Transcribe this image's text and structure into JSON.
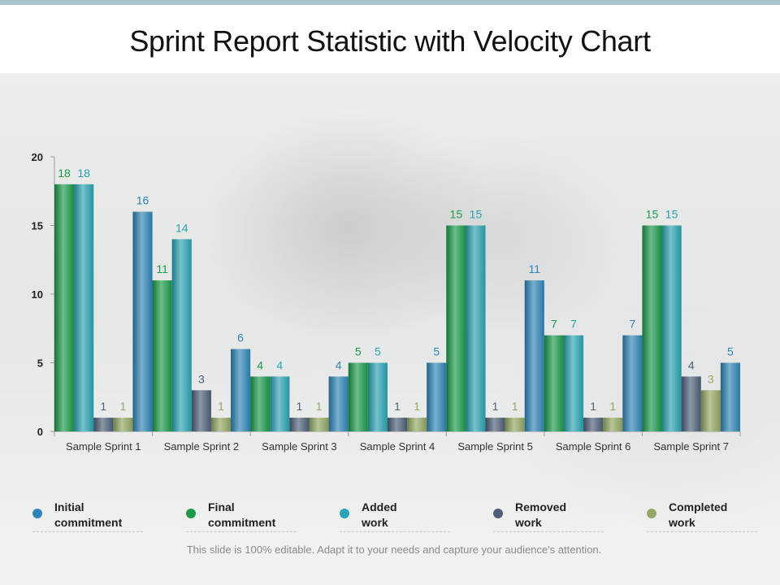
{
  "title": "Sprint Report Statistic with Velocity Chart",
  "footer": "This slide is 100% editable. Adapt it to your needs and capture your audience's attention.",
  "colors": {
    "initial": "#2f84b7",
    "final": "#1a9a4a",
    "added": "#2aa3b3",
    "removed": "#4d5f78",
    "completed": "#93a862"
  },
  "legend": [
    {
      "key": "initial",
      "label": "Initial\ncommitment"
    },
    {
      "key": "final",
      "label": "Final\ncommitment"
    },
    {
      "key": "added",
      "label": "Added\nwork"
    },
    {
      "key": "removed",
      "label": "Removed\nwork"
    },
    {
      "key": "completed",
      "label": "Completed\nwork"
    }
  ],
  "chart_data": {
    "type": "bar",
    "title": "Sprint Report Statistic with Velocity Chart",
    "xlabel": "",
    "ylabel": "",
    "ylim": [
      0,
      20
    ],
    "yticks": [
      0,
      5,
      10,
      15,
      20
    ],
    "grid": false,
    "legend_position": "bottom",
    "categories": [
      "Sample Sprint 1",
      "Sample Sprint 2",
      "Sample Sprint 3",
      "Sample Sprint 4",
      "Sample Sprint 5",
      "Sample Sprint 6",
      "Sample Sprint 7"
    ],
    "series": [
      {
        "name": "Final commitment",
        "key": "final",
        "values": [
          18,
          11,
          4,
          5,
          15,
          7,
          15
        ]
      },
      {
        "name": "Added work",
        "key": "added",
        "values": [
          18,
          14,
          4,
          5,
          15,
          7,
          15
        ]
      },
      {
        "name": "Removed work",
        "key": "removed",
        "values": [
          1,
          3,
          1,
          1,
          1,
          1,
          4
        ]
      },
      {
        "name": "Completed work",
        "key": "completed",
        "values": [
          1,
          1,
          1,
          1,
          1,
          1,
          3
        ]
      },
      {
        "name": "Initial commitment",
        "key": "initial",
        "values": [
          16,
          6,
          4,
          5,
          11,
          7,
          5
        ]
      }
    ]
  }
}
